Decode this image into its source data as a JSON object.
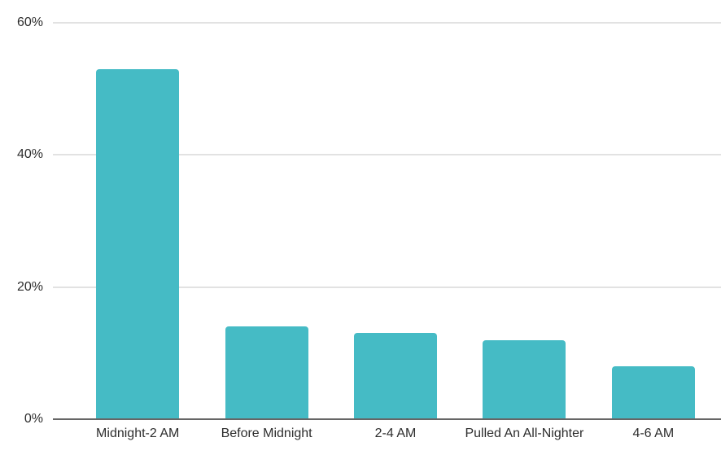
{
  "chart_data": {
    "type": "bar",
    "title": "",
    "xlabel": "",
    "ylabel": "",
    "categories": [
      "Midnight-2 AM",
      "Before Midnight",
      "2-4 AM",
      "Pulled An All-Nighter",
      "4-6 AM"
    ],
    "values": [
      53,
      14,
      13,
      12,
      8
    ],
    "value_unit": "%",
    "ylim": [
      0,
      60
    ],
    "y_ticks": [
      0,
      20,
      40,
      60
    ],
    "y_tick_labels": [
      "0%",
      "20%",
      "40%",
      "60%"
    ],
    "grid": "horizontal",
    "legend_position": "none",
    "bar_color": "#45bbc5",
    "gridline_color": "#e2e2e2",
    "axis_line_color": "#666666",
    "label_color": "#2d2d2d",
    "background_color": "#ffffff"
  }
}
